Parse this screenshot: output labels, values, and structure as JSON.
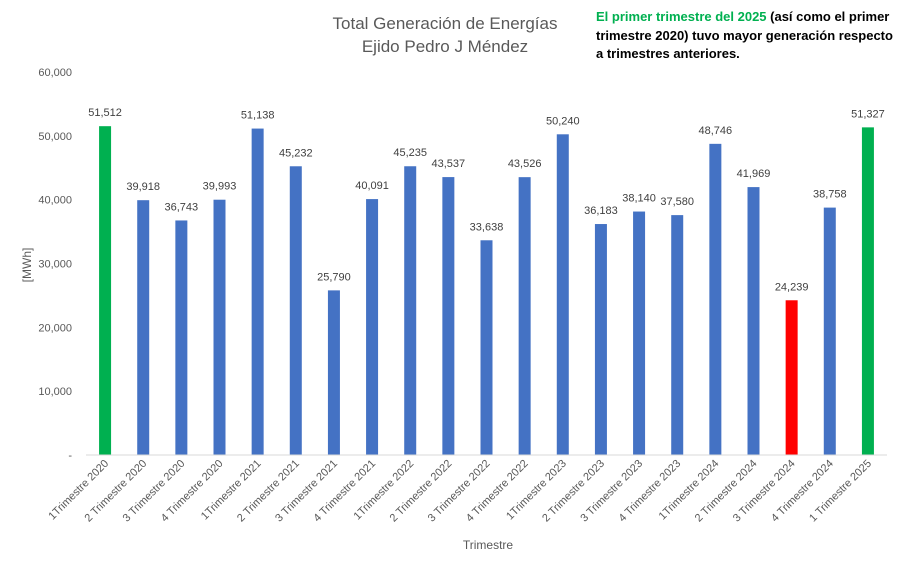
{
  "chart_data": {
    "type": "bar",
    "title_line1": "Total Generación de Energías",
    "title_line2": "Ejido Pedro J Méndez",
    "xlabel": "Trimestre",
    "ylabel": "[MWh]",
    "ylim": [
      0,
      60000
    ],
    "yticks": [
      0,
      10000,
      20000,
      30000,
      40000,
      50000,
      60000
    ],
    "ytick_labels": [
      "-",
      "10,000",
      "20,000",
      "30,000",
      "40,000",
      "50,000",
      "60,000"
    ],
    "grid": false,
    "categories": [
      "1Trimestre 2020",
      "2 Trimestre 2020",
      "3 Trimestre 2020",
      "4 Trimestre 2020",
      "1Trimestre 2021",
      "2 Trimestre 2021",
      "3 Trimestre 2021",
      "4 Trimestre 2021",
      "1Trimestre 2022",
      "2 Trimestre 2022",
      "3 Trimestre 2022",
      "4 Trimestre 2022",
      "1Trimestre 2023",
      "2 Trimestre 2023",
      "3 Trimestre 2023",
      "4 Trimestre 2023",
      "1Trimestre 2024",
      "2 Trimestre 2024",
      "3 Trimestre 2024",
      "4 Trimestre 2024",
      "1 Trimestre 2025"
    ],
    "values": [
      51512,
      39918,
      36743,
      39993,
      51138,
      45232,
      25790,
      40091,
      45235,
      43537,
      33638,
      43526,
      50240,
      36183,
      38140,
      37580,
      48746,
      41969,
      24239,
      38758,
      51327
    ],
    "value_labels": [
      "51,512",
      "39,918",
      "36,743",
      "39,993",
      "51,138",
      "45,232",
      "25,790",
      "40,091",
      "45,235",
      "43,537",
      "33,638",
      "43,526",
      "50,240",
      "36,183",
      "38,140",
      "37,580",
      "48,746",
      "41,969",
      "24,239",
      "38,758",
      "51,327"
    ],
    "bar_colors": [
      "#00b050",
      "#4472c4",
      "#4472c4",
      "#4472c4",
      "#4472c4",
      "#4472c4",
      "#4472c4",
      "#4472c4",
      "#4472c4",
      "#4472c4",
      "#4472c4",
      "#4472c4",
      "#4472c4",
      "#4472c4",
      "#4472c4",
      "#4472c4",
      "#4472c4",
      "#4472c4",
      "#ff0000",
      "#4472c4",
      "#00b050"
    ],
    "annotation": {
      "highlight": "El primer trimestre del 2025",
      "text": " (así como el primer trimestre 2020) tuvo mayor generación respecto a trimestres anteriores."
    }
  },
  "colors": {
    "default_bar": "#4472c4",
    "highlight_bar": "#00b050",
    "low_bar": "#ff0000",
    "text": "#404040"
  }
}
